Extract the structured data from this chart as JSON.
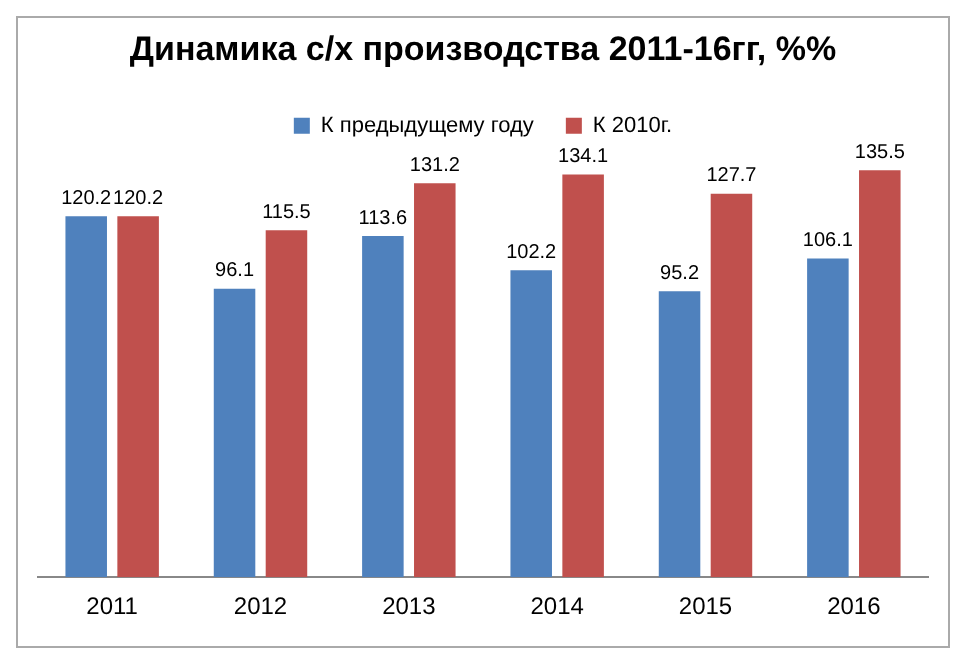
{
  "chart_data": {
    "type": "bar",
    "title": "Динамика с/х производства 2011-16гг, %%",
    "categories": [
      "2011",
      "2012",
      "2013",
      "2014",
      "2015",
      "2016"
    ],
    "series": [
      {
        "name": "К предыдущему году",
        "color": "#4f81bd",
        "values": [
          120.2,
          96.1,
          113.6,
          102.2,
          95.2,
          106.1
        ]
      },
      {
        "name": "К 2010г.",
        "color": "#c0504d",
        "values": [
          120.2,
          115.5,
          131.2,
          134.1,
          127.7,
          135.5
        ]
      }
    ],
    "legend": "top",
    "data_labels": true,
    "grid": false,
    "tick_labels": "x"
  }
}
